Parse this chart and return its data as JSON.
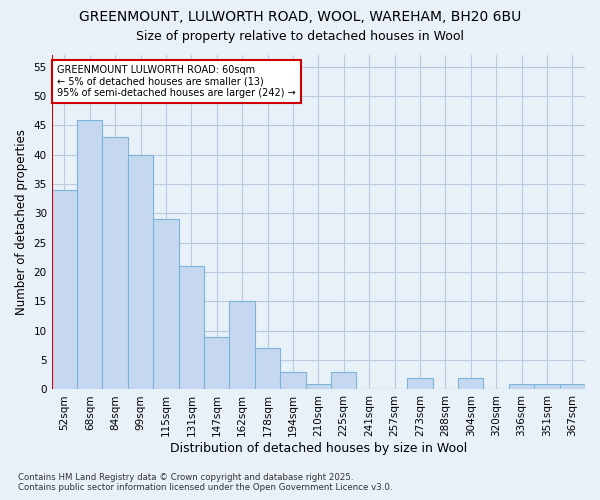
{
  "title_line1": "GREENMOUNT, LULWORTH ROAD, WOOL, WAREHAM, BH20 6BU",
  "title_line2": "Size of property relative to detached houses in Wool",
  "xlabel": "Distribution of detached houses by size in Wool",
  "ylabel": "Number of detached properties",
  "categories": [
    "52sqm",
    "68sqm",
    "84sqm",
    "99sqm",
    "115sqm",
    "131sqm",
    "147sqm",
    "162sqm",
    "178sqm",
    "194sqm",
    "210sqm",
    "225sqm",
    "241sqm",
    "257sqm",
    "273sqm",
    "288sqm",
    "304sqm",
    "320sqm",
    "336sqm",
    "351sqm",
    "367sqm"
  ],
  "values": [
    34,
    46,
    43,
    40,
    29,
    21,
    9,
    15,
    7,
    3,
    1,
    3,
    0,
    0,
    2,
    0,
    2,
    0,
    1,
    1,
    1
  ],
  "bar_color": "#c5d8f0",
  "bar_edge_color": "#7ab4d8",
  "grid_color": "#b8cce0",
  "background_color": "#e8f0f8",
  "plot_bg_color": "#e8f0f8",
  "annotation_text_line1": "GREENMOUNT LULWORTH ROAD: 60sqm",
  "annotation_text_line2": "← 5% of detached houses are smaller (13)",
  "annotation_text_line3": "95% of semi-detached houses are larger (242) →",
  "annotation_box_color": "#ffffff",
  "annotation_border_color": "#cc0000",
  "ylim": [
    0,
    57
  ],
  "yticks": [
    0,
    5,
    10,
    15,
    20,
    25,
    30,
    35,
    40,
    45,
    50,
    55
  ],
  "footer_line1": "Contains HM Land Registry data © Crown copyright and database right 2025.",
  "footer_line2": "Contains public sector information licensed under the Open Government Licence v3.0.",
  "title_fontsize": 10,
  "subtitle_fontsize": 9,
  "tick_fontsize": 7.5,
  "ylabel_fontsize": 8.5,
  "xlabel_fontsize": 9
}
